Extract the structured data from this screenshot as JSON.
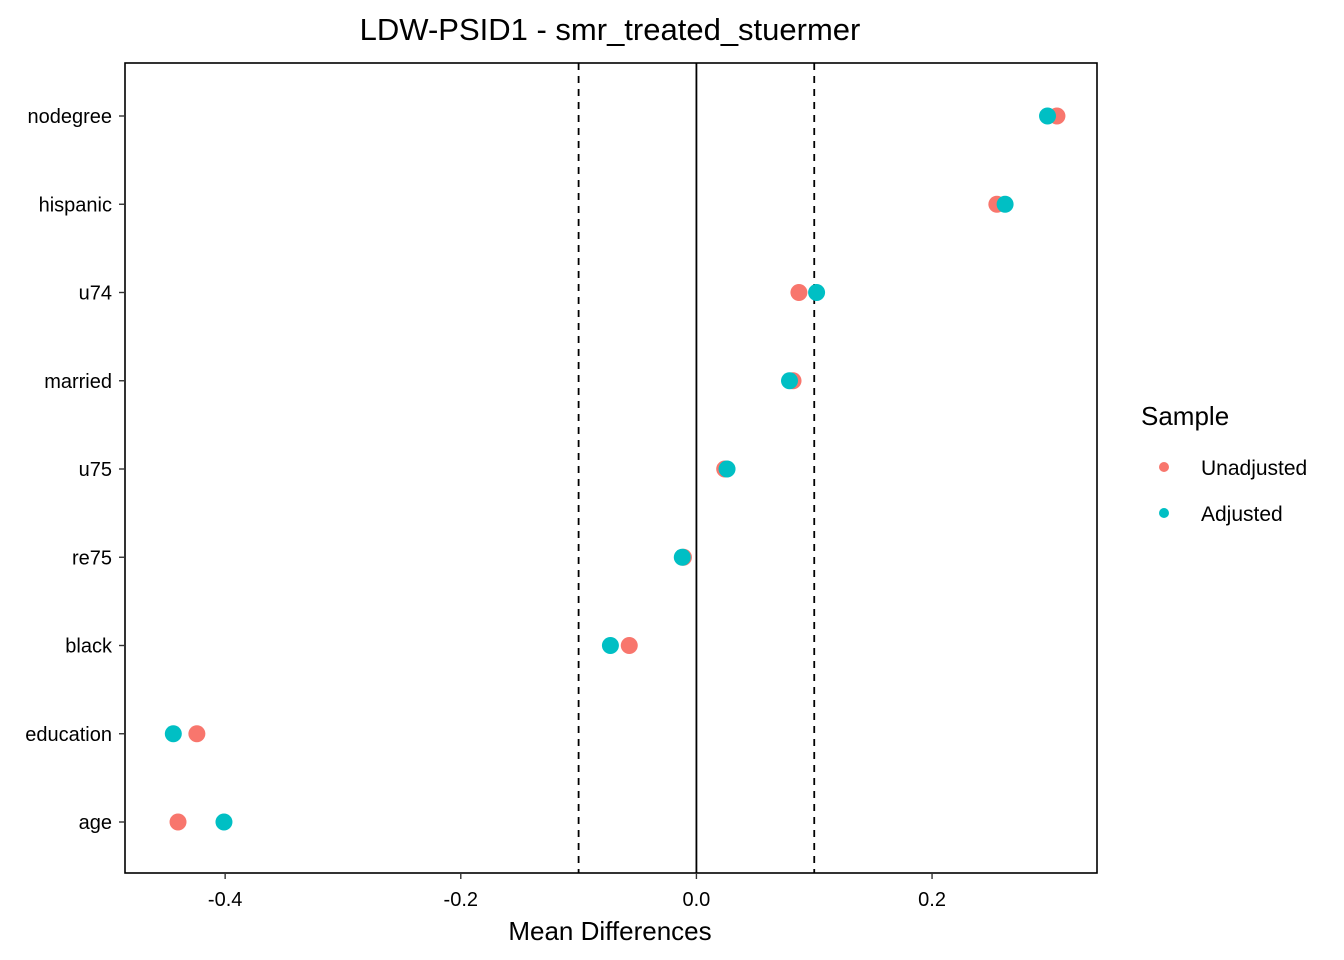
{
  "chart_data": {
    "type": "scatter",
    "title": "LDW-PSID1 - smr_treated_stuermer",
    "xlabel": "Mean Differences",
    "ylabel": "",
    "xlim": [
      -0.485,
      0.34
    ],
    "x_ticks": [
      -0.4,
      -0.2,
      0.0,
      0.2
    ],
    "x_tick_labels": [
      "-0.4",
      "-0.2",
      "0.0",
      "0.2"
    ],
    "categories": [
      "nodegree",
      "hispanic",
      "u74",
      "married",
      "u75",
      "re75",
      "black",
      "education",
      "age"
    ],
    "reference_lines": {
      "solid": 0.0,
      "dashed": [
        -0.1,
        0.1
      ]
    },
    "grid": false,
    "legend_title": "Sample",
    "legend_position": "right",
    "series": [
      {
        "name": "Unadjusted",
        "color": "#F8766D",
        "values": [
          0.306,
          0.255,
          0.087,
          0.082,
          0.024,
          -0.011,
          -0.057,
          -0.424,
          -0.44
        ]
      },
      {
        "name": "Adjusted",
        "color": "#00BFC4",
        "values": [
          0.298,
          0.262,
          0.102,
          0.079,
          0.026,
          -0.012,
          -0.073,
          -0.444,
          -0.401
        ]
      }
    ]
  }
}
